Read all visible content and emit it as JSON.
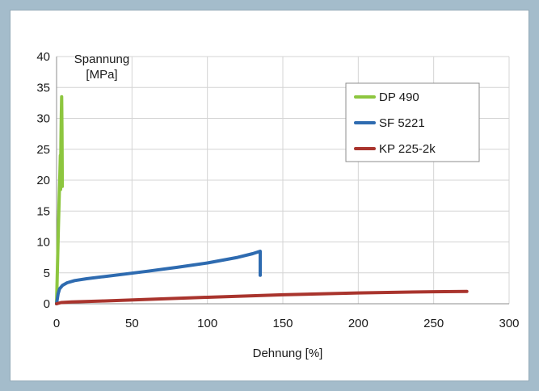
{
  "chart_data": {
    "type": "line",
    "ylabel_lines": [
      "Spannung",
      "[MPa]"
    ],
    "xlabel": "Dehnung [%]",
    "xlim": [
      0,
      300
    ],
    "ylim": [
      0,
      40
    ],
    "xticks": [
      0,
      50,
      100,
      150,
      200,
      250,
      300
    ],
    "yticks": [
      0,
      5,
      10,
      15,
      20,
      25,
      30,
      35,
      40
    ],
    "grid": true,
    "legend_position": "top-right",
    "series": [
      {
        "name": "DP 490",
        "color": "#8dc63f",
        "points": [
          [
            0,
            0
          ],
          [
            0.6,
            6
          ],
          [
            1.2,
            12
          ],
          [
            1.8,
            18
          ],
          [
            2.2,
            21
          ],
          [
            2.5,
            24
          ],
          [
            2.7,
            18.5
          ],
          [
            2.9,
            26
          ],
          [
            3.1,
            30
          ],
          [
            3.4,
            33.5
          ],
          [
            3.6,
            28
          ],
          [
            3.8,
            19
          ]
        ]
      },
      {
        "name": "SF 5221",
        "color": "#2e6bb0",
        "points": [
          [
            0,
            0
          ],
          [
            1,
            1.6
          ],
          [
            2,
            2.4
          ],
          [
            4,
            3.0
          ],
          [
            7,
            3.4
          ],
          [
            12,
            3.75
          ],
          [
            20,
            4.05
          ],
          [
            30,
            4.35
          ],
          [
            45,
            4.8
          ],
          [
            60,
            5.25
          ],
          [
            80,
            5.9
          ],
          [
            100,
            6.6
          ],
          [
            120,
            7.5
          ],
          [
            130,
            8.1
          ],
          [
            135,
            8.5
          ],
          [
            135,
            4.6
          ]
        ]
      },
      {
        "name": "KP 225-2k",
        "color": "#a9342d",
        "points": [
          [
            0,
            0
          ],
          [
            3,
            0.2
          ],
          [
            10,
            0.3
          ],
          [
            30,
            0.45
          ],
          [
            60,
            0.7
          ],
          [
            100,
            1.05
          ],
          [
            150,
            1.45
          ],
          [
            200,
            1.75
          ],
          [
            250,
            1.95
          ],
          [
            272,
            2.0
          ]
        ]
      }
    ]
  }
}
